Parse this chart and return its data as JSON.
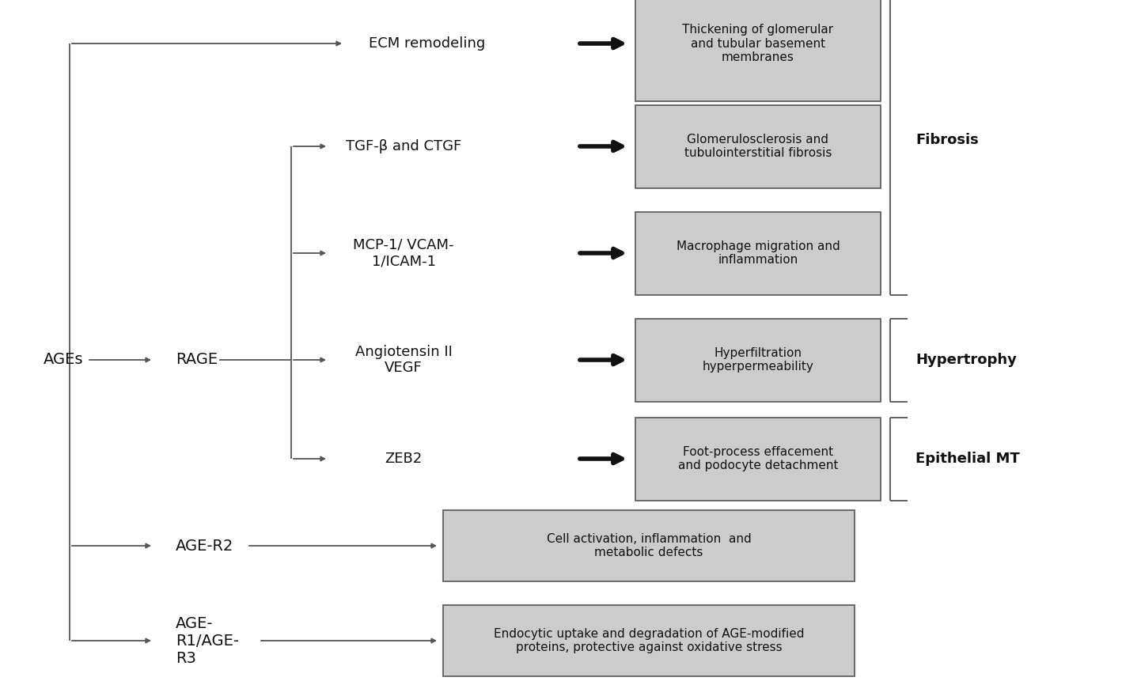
{
  "bg_color": "#ffffff",
  "line_color": "#555555",
  "box_fill": "#cccccc",
  "box_edge": "#555555",
  "text_color": "#111111",
  "ages_label": "AGEs",
  "rage_label": "RAGE",
  "age_r2_label": "AGE-R2",
  "age_r13_label": "AGE-\nR1/AGE-\nR3",
  "ecm_label": "ECM remodeling",
  "ecm_box": "Thickening of glomerular\nand tubular basement\nmembranes",
  "tgf_label": "TGF-β and CTGF",
  "tgf_box": "Glomerulosclerosis and\ntubulointerstitial fibrosis",
  "mcp_label": "MCP-1/ VCAM-\n1/ICAM-1",
  "mcp_box": "Macrophage migration and\ninflammation",
  "angio_label": "Angiotensin II\nVEGF",
  "angio_box": "Hyperfiltration\nhyperpermeability",
  "zeb_label": "ZEB2",
  "zeb_box": "Foot-process effacement\nand podocyte detachment",
  "r2_box": "Cell activation, inflammation  and\nmetabolic defects",
  "r13_box": "Endocytic uptake and degradation of AGE-modified\nproteins, protective against oxidative stress",
  "fibrosis_label": "Fibrosis",
  "hypertrophy_label": "Hypertrophy",
  "epithelial_label": "Epithelial MT",
  "figsize": [
    14.18,
    8.85
  ],
  "dpi": 100
}
